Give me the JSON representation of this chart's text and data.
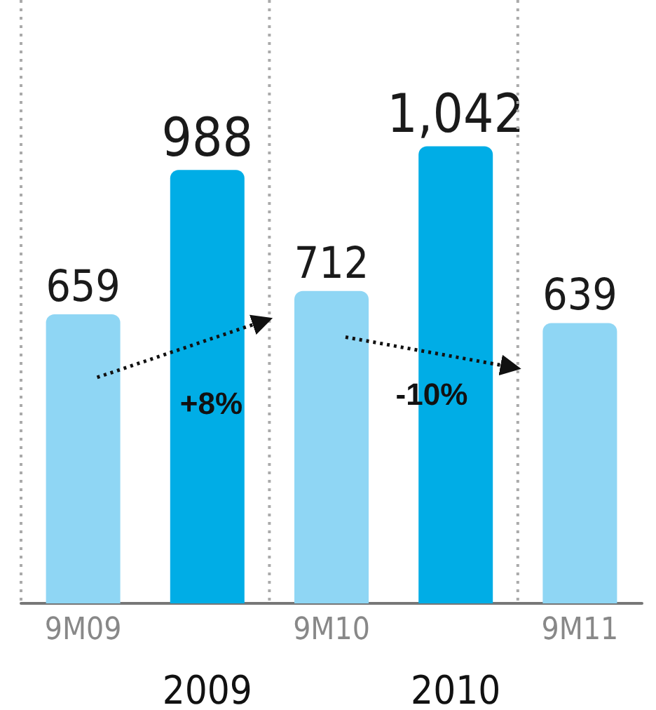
{
  "chart_data": {
    "type": "bar",
    "categories": [
      "9M09",
      "2009",
      "9M10",
      "2010",
      "9M11"
    ],
    "values": [
      659,
      988,
      712,
      1042,
      639
    ],
    "colors": [
      "#8fd6f4",
      "#00ade6",
      "#8fd6f4",
      "#00ade6",
      "#8fd6f4"
    ],
    "data_labels": true,
    "value_labels": [
      "659",
      "988",
      "712",
      "1,042",
      "639"
    ],
    "tick_labels": "x",
    "grid": false,
    "annotations": [
      "+8%",
      "-10%"
    ]
  }
}
